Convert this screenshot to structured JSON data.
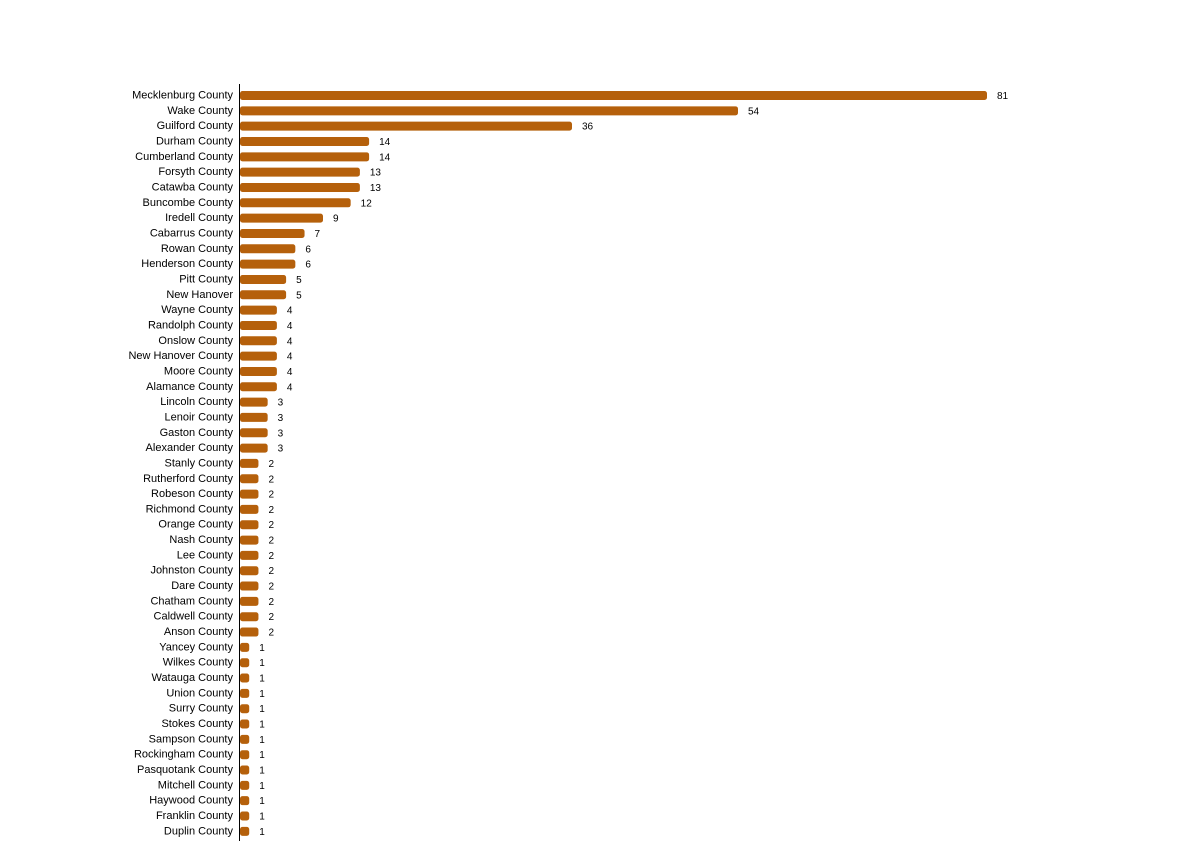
{
  "chart_data": {
    "type": "bar",
    "orientation": "horizontal",
    "title": "",
    "xlabel": "",
    "ylabel": "",
    "grid": false,
    "bar_color": "#b5600b",
    "categories": [
      "Mecklenburg County",
      "Wake County",
      "Guilford County",
      "Durham County",
      "Cumberland County",
      "Forsyth County",
      "Catawba County",
      "Buncombe County",
      "Iredell County",
      "Cabarrus County",
      "Rowan County",
      "Henderson County",
      "Pitt County",
      "New Hanover",
      "Wayne County",
      "Randolph County",
      "Onslow County",
      "New Hanover County",
      "Moore County",
      "Alamance County",
      "Lincoln County",
      "Lenoir County",
      "Gaston County",
      "Alexander County",
      "Stanly County",
      "Rutherford County",
      "Robeson County",
      "Richmond County",
      "Orange County",
      "Nash County",
      "Lee County",
      "Johnston County",
      "Dare County",
      "Chatham County",
      "Caldwell County",
      "Anson County",
      "Yancey County",
      "Wilkes County",
      "Watauga County",
      "Union County",
      "Surry County",
      "Stokes County",
      "Sampson County",
      "Rockingham County",
      "Pasquotank County",
      "Mitchell County",
      "Haywood County",
      "Franklin County",
      "Duplin County"
    ],
    "values": [
      81,
      54,
      36,
      14,
      14,
      13,
      13,
      12,
      9,
      7,
      6,
      6,
      5,
      5,
      4,
      4,
      4,
      4,
      4,
      4,
      3,
      3,
      3,
      3,
      2,
      2,
      2,
      2,
      2,
      2,
      2,
      2,
      2,
      2,
      2,
      2,
      1,
      1,
      1,
      1,
      1,
      1,
      1,
      1,
      1,
      1,
      1,
      1,
      1
    ]
  }
}
